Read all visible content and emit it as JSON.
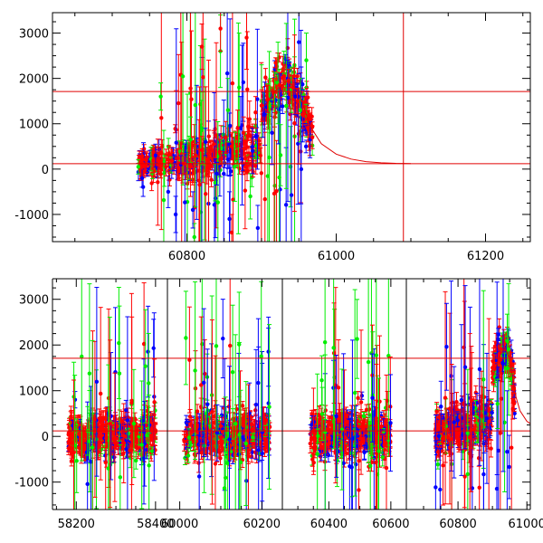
{
  "chart_data": [
    {
      "type": "scatter",
      "panel": "top",
      "title": "",
      "xlabel": "",
      "ylabel": "",
      "xlim": [
        60620,
        61260
      ],
      "ylim": [
        -1600,
        3450
      ],
      "x_ticks": [
        60800,
        61000,
        61200
      ],
      "y_ticks": [
        -1000,
        0,
        1000,
        2000,
        3000
      ],
      "grid": false,
      "legend": "none",
      "reference_lines": {
        "horizontal": [
          1710,
          120
        ],
        "vertical": [
          61090
        ]
      },
      "colors": {
        "g_band": "#00ee00",
        "b_band": "#0000ff",
        "r_band": "#ff0000",
        "lines": "#e00000"
      },
      "model_curve": {
        "color": "#e00000",
        "points": [
          [
            60905,
            1400
          ],
          [
            60920,
            1750
          ],
          [
            60935,
            1950
          ],
          [
            60950,
            1700
          ],
          [
            60965,
            950
          ],
          [
            60980,
            560
          ],
          [
            61000,
            330
          ],
          [
            61020,
            220
          ],
          [
            61040,
            165
          ],
          [
            61060,
            138
          ],
          [
            61080,
            126
          ],
          [
            61100,
            122
          ]
        ]
      },
      "series": [
        {
          "name": "",
          "color": "#00ee00",
          "points": [
            [
              60735,
              50,
              160
            ],
            [
              60752,
              220,
              260
            ],
            [
              60770,
              -80,
              300
            ],
            [
              60790,
              400,
              220
            ],
            [
              60805,
              650,
              500
            ],
            [
              60820,
              900,
              800
            ],
            [
              60838,
              -300,
              400
            ],
            [
              60855,
              1300,
              700
            ],
            [
              60870,
              1800,
              1200
            ],
            [
              60885,
              -600,
              500
            ],
            [
              60900,
              1500,
              800
            ],
            [
              60912,
              1400,
              600
            ],
            [
              60922,
              1900,
              900
            ],
            [
              60930,
              2100,
              500
            ],
            [
              60940,
              1750,
              500
            ],
            [
              60952,
              1300,
              700
            ],
            [
              60960,
              2400,
              600
            ],
            [
              60810,
              -1500,
              300
            ],
            [
              60845,
              2600,
              800
            ],
            [
              60765,
              1600,
              300
            ]
          ]
        },
        {
          "name": "",
          "color": "#0000ff",
          "points": [
            [
              60740,
              -200,
              200
            ],
            [
              60758,
              300,
              250
            ],
            [
              60775,
              -500,
              350
            ],
            [
              60792,
              100,
              200
            ],
            [
              60808,
              -900,
              400
            ],
            [
              60825,
              600,
              300
            ],
            [
              60840,
              -100,
              250
            ],
            [
              60857,
              -1100,
              600
            ],
            [
              60872,
              900,
              700
            ],
            [
              60888,
              400,
              500
            ],
            [
              60902,
              1200,
              500
            ],
            [
              60914,
              800,
              700
            ],
            [
              60925,
              1700,
              400
            ],
            [
              60935,
              2000,
              400
            ],
            [
              60945,
              1600,
              400
            ],
            [
              60955,
              1100,
              500
            ],
            [
              60965,
              650,
              400
            ],
            [
              60895,
              -1300,
              500
            ],
            [
              60950,
              2800,
              700
            ],
            [
              60785,
              -1000,
              400
            ]
          ]
        },
        {
          "name": "",
          "color": "#ff0000",
          "points": [
            [
              60738,
              150,
              150
            ],
            [
              60745,
              80,
              150
            ],
            [
              60755,
              200,
              180
            ],
            [
              60762,
              100,
              150
            ],
            [
              60772,
              50,
              200
            ],
            [
              60780,
              180,
              180
            ],
            [
              60788,
              240,
              200
            ],
            [
              60796,
              120,
              220
            ],
            [
              60804,
              60,
              180
            ],
            [
              60812,
              300,
              250
            ],
            [
              60820,
              420,
              300
            ],
            [
              60828,
              200,
              250
            ],
            [
              60836,
              550,
              300
            ],
            [
              60844,
              380,
              280
            ],
            [
              60852,
              700,
              350
            ],
            [
              60860,
              500,
              300
            ],
            [
              60868,
              900,
              400
            ],
            [
              60876,
              800,
              350
            ],
            [
              60884,
              1100,
              400
            ],
            [
              60892,
              1250,
              350
            ],
            [
              60900,
              1400,
              350
            ],
            [
              60908,
              1550,
              300
            ],
            [
              60916,
              1700,
              300
            ],
            [
              60924,
              1850,
              280
            ],
            [
              60930,
              2050,
              250
            ],
            [
              60936,
              1950,
              250
            ],
            [
              60942,
              1800,
              260
            ],
            [
              60948,
              1500,
              280
            ],
            [
              60955,
              1200,
              300
            ],
            [
              60962,
              900,
              300
            ],
            [
              60968,
              700,
              250
            ],
            [
              60820,
              2700,
              500
            ],
            [
              60845,
              3100,
              500
            ],
            [
              60860,
              -1400,
              400
            ],
            [
              60880,
              2900,
              700
            ]
          ]
        }
      ]
    },
    {
      "type": "scatter",
      "panel": "bottom",
      "title": "",
      "xlabel": "",
      "ylabel": "",
      "segments": [
        {
          "xlim": [
            58140,
            58430
          ],
          "x_ticks": [
            58200,
            58400
          ]
        },
        {
          "xlim": [
            59970,
            60250
          ],
          "x_ticks": [
            60000,
            60200
          ]
        },
        {
          "xlim": [
            60250,
            60650
          ],
          "x_ticks": [
            60400,
            60600
          ]
        },
        {
          "xlim": [
            60650,
            61010
          ],
          "x_ticks": [
            60800,
            61000
          ]
        }
      ],
      "ylim": [
        -1600,
        3450
      ],
      "y_ticks": [
        -1000,
        0,
        1000,
        2000,
        3000
      ],
      "grid": false,
      "legend": "none",
      "reference_lines": {
        "horizontal": [
          1710,
          120
        ]
      },
      "colors": {
        "g_band": "#00ee00",
        "b_band": "#0000ff",
        "r_band": "#ff0000",
        "lines": "#e00000"
      },
      "model_curve": {
        "color": "#e00000",
        "points": [
          [
            60905,
            1400
          ],
          [
            60920,
            1750
          ],
          [
            60935,
            1950
          ],
          [
            60950,
            1700
          ],
          [
            60965,
            950
          ],
          [
            60980,
            560
          ],
          [
            61000,
            330
          ],
          [
            61010,
            280
          ]
        ]
      },
      "clusters": [
        {
          "xrange": [
            58180,
            58400
          ]
        },
        {
          "xrange": [
            60010,
            60220
          ]
        },
        {
          "xrange": [
            60340,
            60600
          ]
        },
        {
          "xrange": [
            60735,
            60965
          ]
        }
      ]
    }
  ]
}
